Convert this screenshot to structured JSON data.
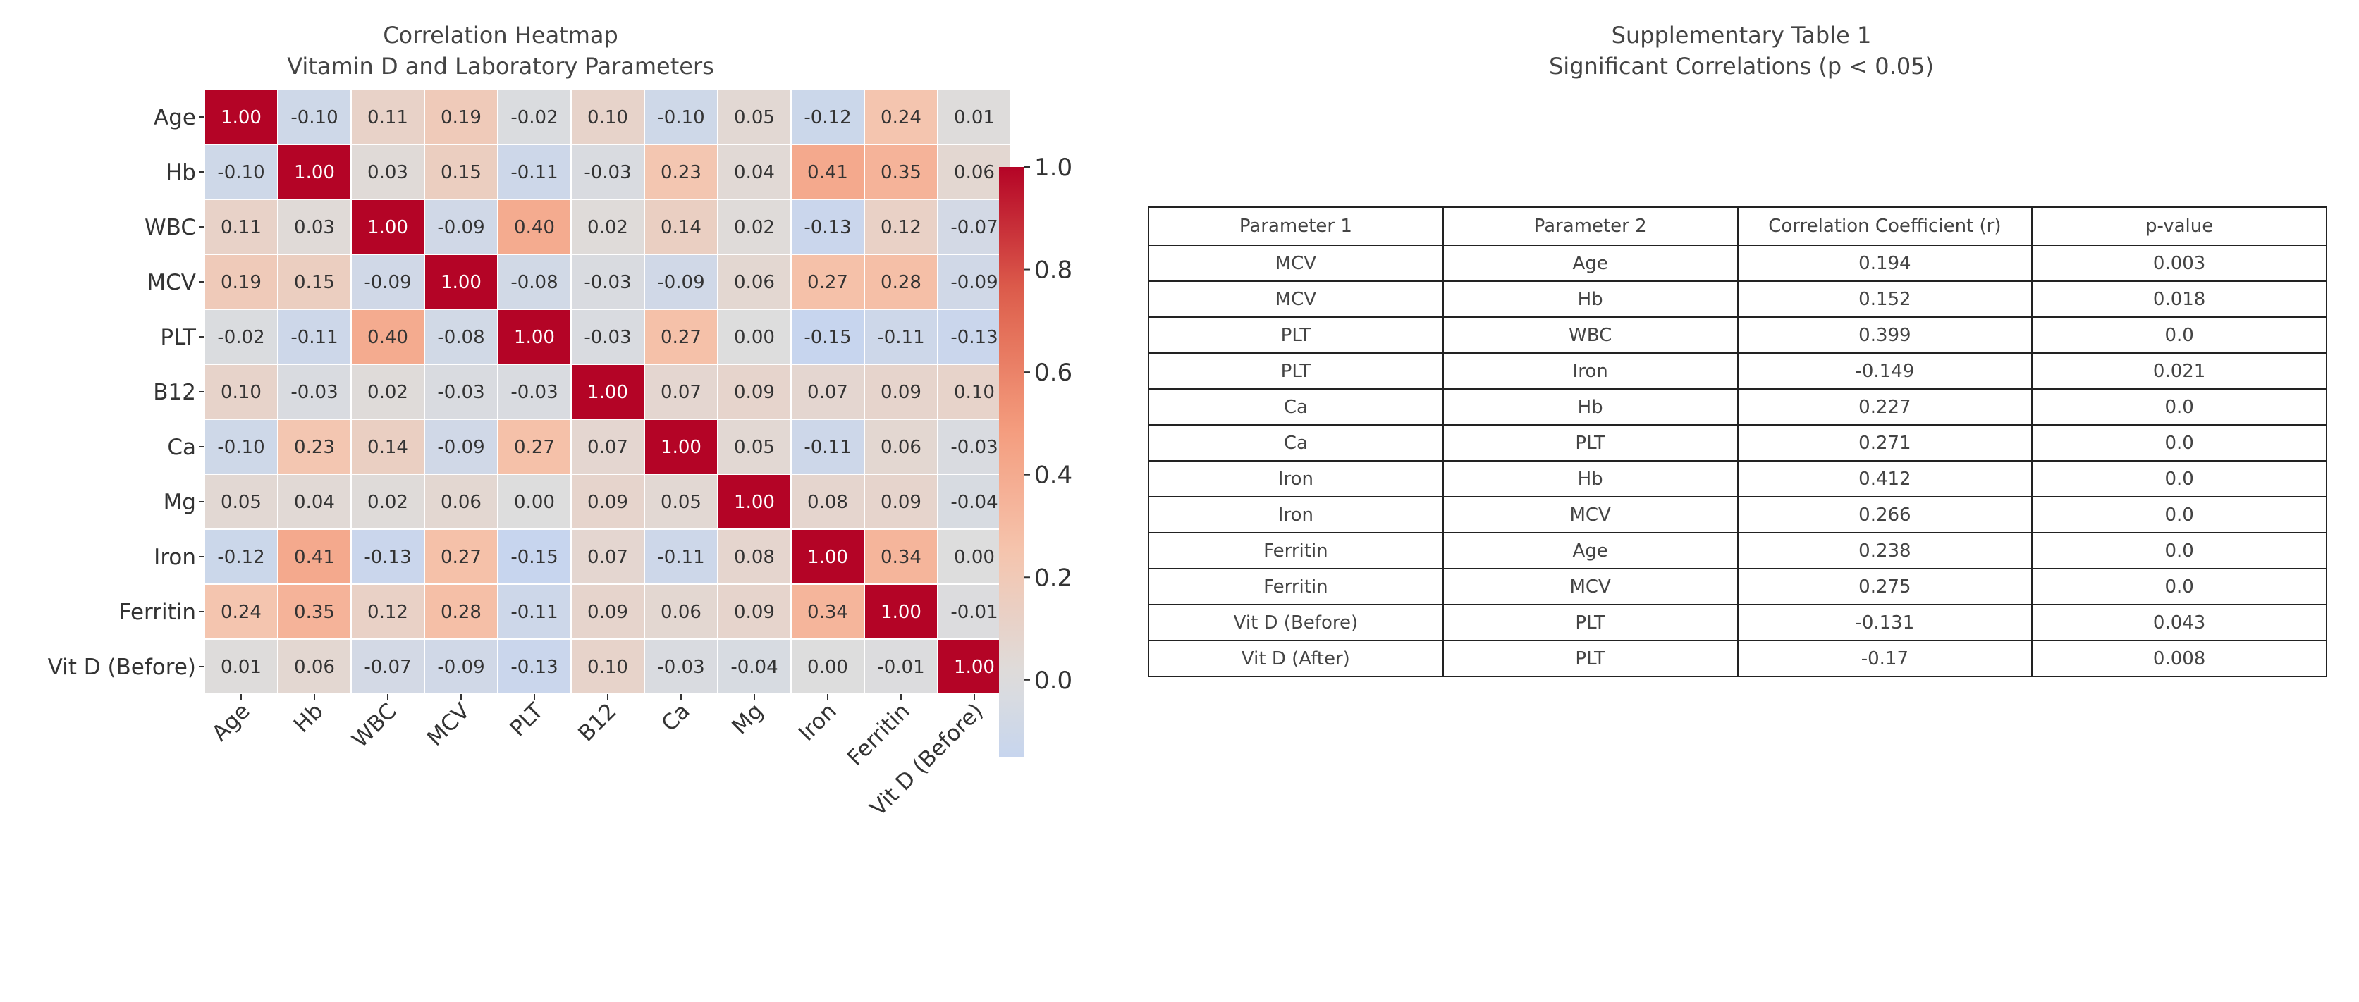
{
  "heatmap": {
    "title_line1": "Correlation Heatmap",
    "title_line2": "Vitamin D and Laboratory Parameters"
  },
  "table": {
    "title_line1": "Supplementary Table 1",
    "title_line2": "Significant Correlations (p < 0.05)",
    "headers": [
      "Parameter 1",
      "Parameter 2",
      "Correlation Coefficient (r)",
      "p-value"
    ],
    "rows": [
      [
        "MCV",
        "Age",
        "0.194",
        "0.003"
      ],
      [
        "MCV",
        "Hb",
        "0.152",
        "0.018"
      ],
      [
        "PLT",
        "WBC",
        "0.399",
        "0.0"
      ],
      [
        "PLT",
        "Iron",
        "-0.149",
        "0.021"
      ],
      [
        "Ca",
        "Hb",
        "0.227",
        "0.0"
      ],
      [
        "Ca",
        "PLT",
        "0.271",
        "0.0"
      ],
      [
        "Iron",
        "Hb",
        "0.412",
        "0.0"
      ],
      [
        "Iron",
        "MCV",
        "0.266",
        "0.0"
      ],
      [
        "Ferritin",
        "Age",
        "0.238",
        "0.0"
      ],
      [
        "Ferritin",
        "MCV",
        "0.275",
        "0.0"
      ],
      [
        "Vit D (Before)",
        "PLT",
        "-0.131",
        "0.043"
      ],
      [
        "Vit D (After)",
        "PLT",
        "-0.17",
        "0.008"
      ]
    ]
  },
  "chart_data": {
    "type": "heatmap",
    "title": "Correlation Heatmap\nVitamin D and Laboratory Parameters",
    "x_labels": [
      "Age",
      "Hb",
      "WBC",
      "MCV",
      "PLT",
      "B12",
      "Ca",
      "Mg",
      "Iron",
      "Ferritin",
      "Vit D (Before)"
    ],
    "y_labels": [
      "Age",
      "Hb",
      "WBC",
      "MCV",
      "PLT",
      "B12",
      "Ca",
      "Mg",
      "Iron",
      "Ferritin",
      "Vit D (Before)"
    ],
    "values": [
      [
        1.0,
        -0.1,
        0.11,
        0.19,
        -0.02,
        0.1,
        -0.1,
        0.05,
        -0.12,
        0.24,
        0.01
      ],
      [
        -0.1,
        1.0,
        0.03,
        0.15,
        -0.11,
        -0.03,
        0.23,
        0.04,
        0.41,
        0.35,
        0.06
      ],
      [
        0.11,
        0.03,
        1.0,
        -0.09,
        0.4,
        0.02,
        0.14,
        0.02,
        -0.13,
        0.12,
        -0.07
      ],
      [
        0.19,
        0.15,
        -0.09,
        1.0,
        -0.08,
        -0.03,
        -0.09,
        0.06,
        0.27,
        0.28,
        -0.09
      ],
      [
        -0.02,
        -0.11,
        0.4,
        -0.08,
        1.0,
        -0.03,
        0.27,
        -0.0,
        -0.15,
        -0.11,
        -0.13
      ],
      [
        0.1,
        -0.03,
        0.02,
        -0.03,
        -0.03,
        1.0,
        0.07,
        0.09,
        0.07,
        0.09,
        0.1
      ],
      [
        -0.1,
        0.23,
        0.14,
        -0.09,
        0.27,
        0.07,
        1.0,
        0.05,
        -0.11,
        0.06,
        -0.03
      ],
      [
        0.05,
        0.04,
        0.02,
        0.06,
        -0.0,
        0.09,
        0.05,
        1.0,
        0.08,
        0.09,
        -0.04
      ],
      [
        -0.12,
        0.41,
        -0.13,
        0.27,
        -0.15,
        0.07,
        -0.11,
        0.08,
        1.0,
        0.34,
        -0.0
      ],
      [
        0.24,
        0.35,
        0.12,
        0.28,
        -0.11,
        0.09,
        0.06,
        0.09,
        0.34,
        1.0,
        -0.01
      ],
      [
        0.01,
        0.06,
        -0.07,
        -0.09,
        -0.13,
        0.1,
        -0.03,
        -0.04,
        -0.0,
        -0.01,
        1.0
      ]
    ],
    "colormap": "coolwarm",
    "colorbar": {
      "min": -0.15,
      "max": 1.0,
      "ticks": [
        0.0,
        0.2,
        0.4,
        0.6,
        0.8,
        1.0
      ]
    }
  }
}
